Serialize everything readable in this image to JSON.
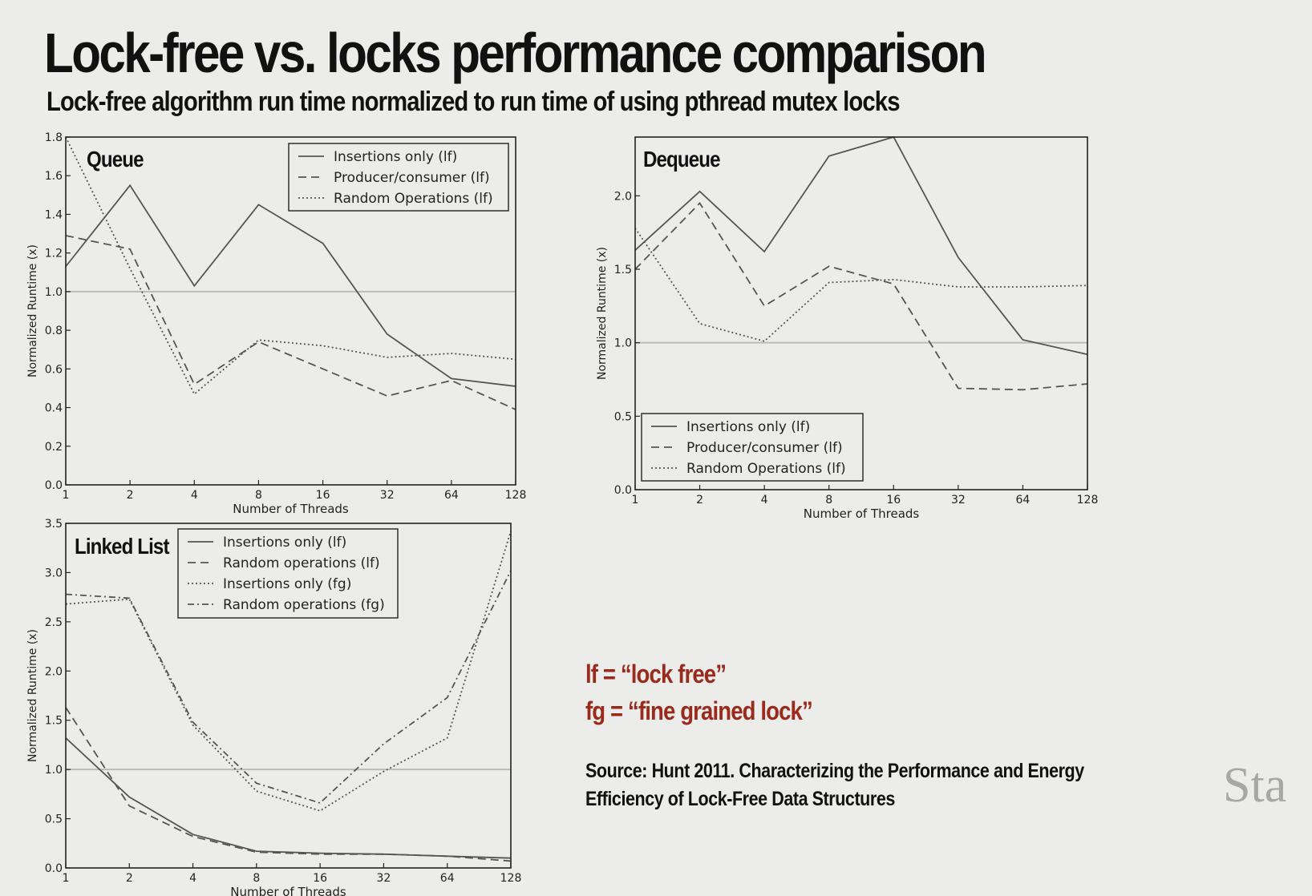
{
  "title": "Lock-free vs. locks performance comparison",
  "subtitle": "Lock-free algorithm run time normalized to run time of using pthread mutex locks",
  "definitions": [
    "lf = “lock free”",
    "fg = “fine grained lock”"
  ],
  "source": [
    "Source: Hunt 2011. Characterizing the Performance and Energy",
    "Efficiency of Lock-Free Data Structures"
  ],
  "watermark": "Sta",
  "colors": {
    "background": "#ececea",
    "lines": "#555555",
    "reference_line": "#bbbbbb",
    "definitions": "#9a2a1c",
    "watermark": "#a7a7a5"
  },
  "chart_data": [
    {
      "type": "line",
      "title": "Queue",
      "xlabel": "Number of Threads",
      "ylabel": "Normalized Runtime (x)",
      "x_scale": "log2",
      "categories": [
        "1",
        "2",
        "4",
        "8",
        "16",
        "32",
        "64",
        "128"
      ],
      "ylim": [
        0,
        1.8
      ],
      "yticks": [
        "0.0",
        "0.2",
        "0.4",
        "0.6",
        "0.8",
        "1.0",
        "1.2",
        "1.4",
        "1.6",
        "1.8"
      ],
      "reference_line": 1.0,
      "grid": false,
      "legend_position": "top-right",
      "series": [
        {
          "name": "Insertions only (lf)",
          "style": "solid",
          "values": [
            1.13,
            1.55,
            1.03,
            1.45,
            1.25,
            0.78,
            0.55,
            0.51
          ]
        },
        {
          "name": "Producer/consumer (lf)",
          "style": "dashed",
          "values": [
            1.29,
            1.22,
            0.52,
            0.74,
            0.6,
            0.46,
            0.54,
            0.39
          ]
        },
        {
          "name": "Random Operations (lf)",
          "style": "dotted",
          "values": [
            1.8,
            1.12,
            0.47,
            0.75,
            0.72,
            0.66,
            0.68,
            0.65
          ]
        }
      ]
    },
    {
      "type": "line",
      "title": "Dequeue",
      "xlabel": "Number of Threads",
      "ylabel": "Normalized Runtime (x)",
      "x_scale": "log2",
      "categories": [
        "1",
        "2",
        "4",
        "8",
        "16",
        "32",
        "64",
        "128"
      ],
      "ylim": [
        0,
        2.4
      ],
      "yticks": [
        "0.0",
        "0.5",
        "1.0",
        "1.5",
        "2.0"
      ],
      "reference_line": 1.0,
      "grid": false,
      "legend_position": "bottom-left",
      "series": [
        {
          "name": "Insertions only (lf)",
          "style": "solid",
          "values": [
            1.63,
            2.03,
            1.62,
            2.27,
            2.4,
            1.58,
            1.02,
            0.92
          ]
        },
        {
          "name": "Producer/consumer (lf)",
          "style": "dashed",
          "values": [
            1.5,
            1.95,
            1.25,
            1.52,
            1.4,
            0.69,
            0.68,
            0.72
          ]
        },
        {
          "name": "Random Operations (lf)",
          "style": "dotted",
          "values": [
            1.78,
            1.13,
            1.01,
            1.41,
            1.43,
            1.38,
            1.38,
            1.39
          ]
        }
      ]
    },
    {
      "type": "line",
      "title": "Linked List",
      "xlabel": "Number of Threads",
      "ylabel": "Normalized Runtime (x)",
      "x_scale": "log2",
      "categories": [
        "1",
        "2",
        "4",
        "8",
        "16",
        "32",
        "64",
        "128"
      ],
      "ylim": [
        0,
        3.5
      ],
      "yticks": [
        "0.0",
        "0.5",
        "1.0",
        "1.5",
        "2.0",
        "2.5",
        "3.0",
        "3.5"
      ],
      "reference_line": 1.0,
      "grid": false,
      "legend_position": "top-center",
      "series": [
        {
          "name": "Insertions only (lf)",
          "style": "solid",
          "values": [
            1.32,
            0.72,
            0.34,
            0.17,
            0.15,
            0.14,
            0.12,
            0.1
          ]
        },
        {
          "name": "Random operations (lf)",
          "style": "dashed",
          "values": [
            1.63,
            0.63,
            0.32,
            0.16,
            0.14,
            0.14,
            0.12,
            0.07
          ]
        },
        {
          "name": "Insertions only (fg)",
          "style": "dotted",
          "values": [
            2.68,
            2.73,
            1.45,
            0.78,
            0.58,
            0.98,
            1.32,
            3.42
          ]
        },
        {
          "name": "Random operations (fg)",
          "style": "dashdot",
          "values": [
            2.78,
            2.74,
            1.48,
            0.86,
            0.66,
            1.26,
            1.73,
            3.02
          ]
        }
      ]
    }
  ]
}
